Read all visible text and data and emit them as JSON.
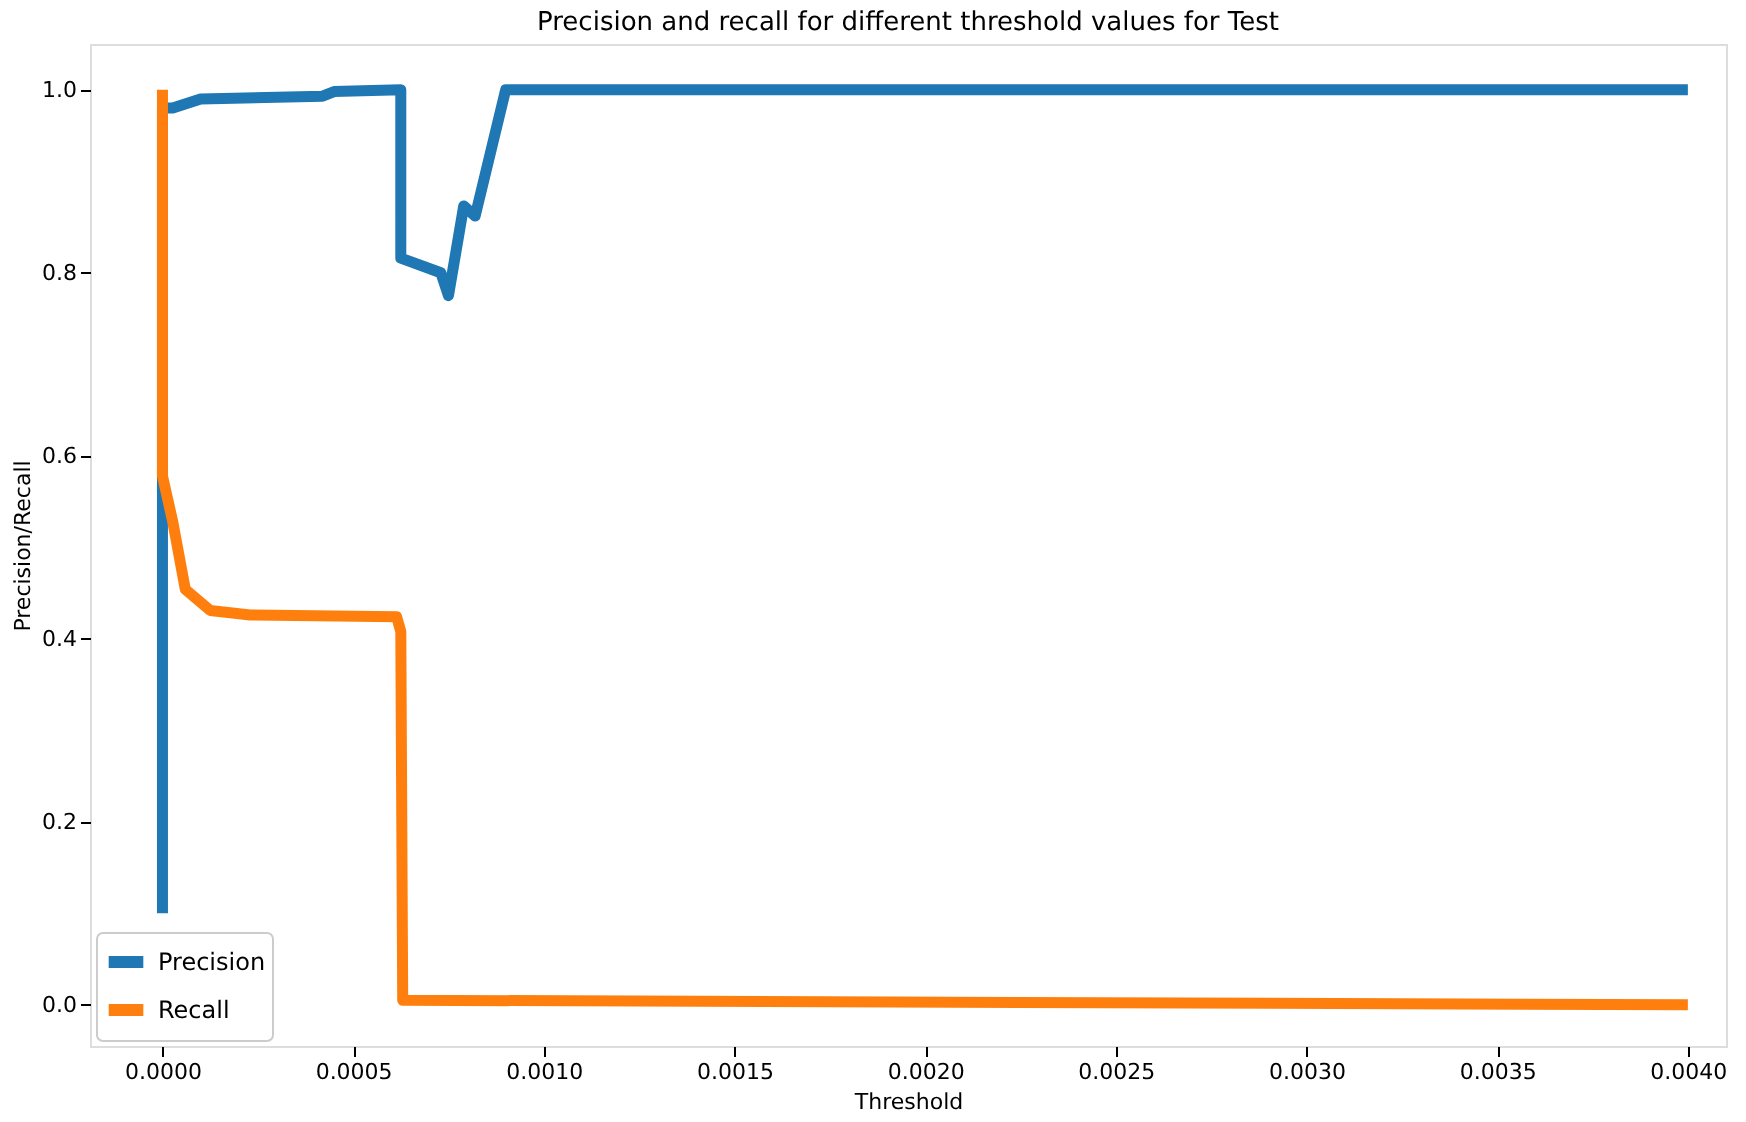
{
  "chart_data": {
    "type": "line",
    "title": "Precision and recall for different threshold values for Test",
    "xlabel": "Threshold",
    "ylabel": "Precision/Recall",
    "series": [
      {
        "name": "Precision",
        "color": "#1f77b4",
        "x": [
          0,
          0,
          2.7e-05,
          0.0001,
          0.00042,
          0.00045,
          0.000625,
          0.000625,
          0.00073,
          0.00075,
          0.00079,
          0.00082,
          0.0009,
          0.004
        ],
        "values": [
          0.1,
          0.98,
          0.98,
          0.99,
          0.993,
          0.998,
          1.0,
          0.816,
          0.8,
          0.775,
          0.873,
          0.862,
          1.0,
          1.0
        ]
      },
      {
        "name": "Recall",
        "color": "#ff7f0e",
        "x": [
          0,
          0,
          2.7e-05,
          6e-05,
          0.000125,
          0.00023,
          0.000614,
          0.000625,
          0.00063,
          0.004
        ],
        "values": [
          1.0,
          0.578,
          0.528,
          0.454,
          0.431,
          0.426,
          0.424,
          0.408,
          0.005,
          0.0
        ]
      }
    ],
    "xlim": [
      -0.00019,
      0.0041
    ],
    "ylim": [
      -0.045,
      1.05
    ],
    "xticks": [
      {
        "value": 0,
        "label": "0.0000"
      },
      {
        "value": 0.0005,
        "label": "0.0005"
      },
      {
        "value": 0.001,
        "label": "0.0010"
      },
      {
        "value": 0.0015,
        "label": "0.0015"
      },
      {
        "value": 0.002,
        "label": "0.0020"
      },
      {
        "value": 0.0025,
        "label": "0.0025"
      },
      {
        "value": 0.003,
        "label": "0.0030"
      },
      {
        "value": 0.0035,
        "label": "0.0035"
      },
      {
        "value": 0.004,
        "label": "0.0040"
      }
    ],
    "yticks": [
      {
        "value": 0,
        "label": "0.0"
      },
      {
        "value": 0.2,
        "label": "0.2"
      },
      {
        "value": 0.4,
        "label": "0.4"
      },
      {
        "value": 0.6,
        "label": "0.6"
      },
      {
        "value": 0.8,
        "label": "0.8"
      },
      {
        "value": 1.0,
        "label": "1.0"
      }
    ],
    "legend": "bottom left",
    "grid": false,
    "line_style": "solid",
    "marker": "none"
  }
}
